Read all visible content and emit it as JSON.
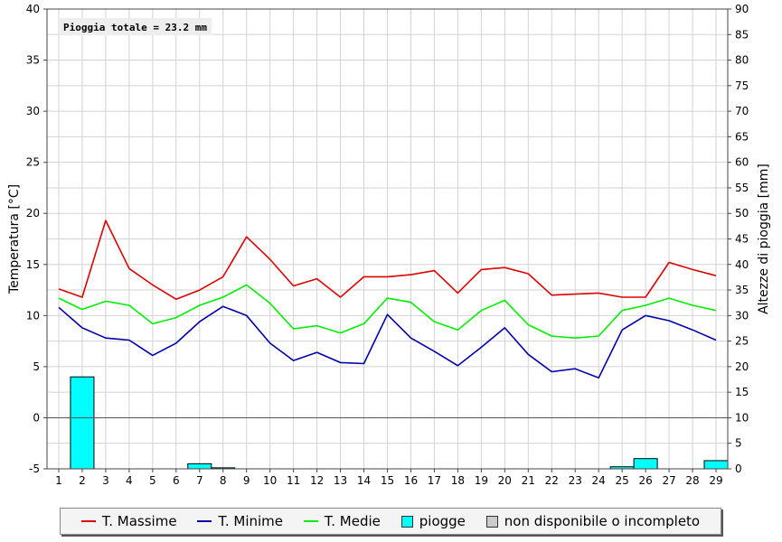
{
  "colors": {
    "max": "#dd0000",
    "min": "#0000aa",
    "mean": "#00ee00",
    "rain": "#00ffff",
    "na": "#cccccc",
    "grid": "#d3d3d3"
  },
  "annotation": "Pioggia totale = 23.2 mm",
  "legend": {
    "max": "T. Massime",
    "min": "T. Minime",
    "mean": "T. Medie",
    "rain": "piogge",
    "na": "non disponibile o incompleto"
  },
  "chart_data": {
    "type": "line",
    "days": [
      1,
      2,
      3,
      4,
      5,
      6,
      7,
      8,
      9,
      10,
      11,
      12,
      13,
      14,
      15,
      16,
      17,
      18,
      19,
      20,
      21,
      22,
      23,
      24,
      25,
      26,
      27,
      28,
      29
    ],
    "ylabel_left": "Temperatura [°C]",
    "ylabel_right": "Altezze di pioggia [mm]",
    "ylim_left": [
      -5,
      40
    ],
    "ylim_right": [
      0,
      90
    ],
    "yticks_left": [
      -5,
      0,
      5,
      10,
      15,
      20,
      25,
      30,
      35,
      40
    ],
    "yticks_right": [
      0,
      5,
      10,
      15,
      20,
      25,
      30,
      35,
      40,
      45,
      50,
      55,
      60,
      65,
      70,
      75,
      80,
      85,
      90
    ],
    "grid": true,
    "legend_position": "bottom",
    "series": [
      {
        "name": "T. Massime",
        "color_key": "max",
        "axis": "left",
        "values": [
          12.6,
          11.8,
          19.3,
          14.6,
          13.0,
          11.6,
          12.5,
          13.8,
          17.7,
          15.5,
          12.9,
          13.6,
          11.8,
          13.8,
          13.8,
          14.0,
          14.4,
          12.2,
          14.5,
          14.7,
          14.1,
          12.0,
          12.1,
          12.2,
          11.8,
          11.8,
          15.2,
          14.5,
          13.9
        ]
      },
      {
        "name": "T. Minime",
        "color_key": "min",
        "axis": "left",
        "values": [
          10.8,
          8.8,
          7.8,
          7.6,
          6.1,
          7.3,
          9.4,
          10.9,
          10.0,
          7.3,
          5.6,
          6.4,
          5.4,
          5.3,
          10.1,
          7.8,
          6.5,
          5.1,
          6.9,
          8.8,
          6.2,
          4.5,
          4.8,
          3.9,
          8.6,
          10.0,
          9.5,
          8.6,
          7.6
        ]
      },
      {
        "name": "T. Medie",
        "color_key": "mean",
        "axis": "left",
        "values": [
          11.7,
          10.6,
          11.4,
          11.0,
          9.2,
          9.8,
          11.0,
          11.8,
          13.0,
          11.2,
          8.7,
          9.0,
          8.3,
          9.2,
          11.7,
          11.3,
          9.4,
          8.6,
          10.5,
          11.5,
          9.1,
          8.0,
          7.8,
          8.0,
          10.5,
          11.0,
          11.7,
          11.0,
          10.5
        ]
      },
      {
        "name": "piogge",
        "color_key": "rain",
        "axis": "right",
        "kind": "bar",
        "values": [
          0,
          18.0,
          0,
          0,
          0,
          0,
          1.0,
          0.2,
          0,
          0,
          0,
          0,
          0,
          0,
          0,
          0,
          0,
          0,
          0,
          0,
          0,
          0,
          0,
          0,
          0.4,
          2.0,
          0,
          0,
          1.6
        ]
      }
    ]
  }
}
